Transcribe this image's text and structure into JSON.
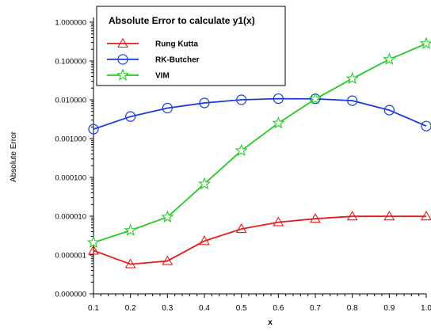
{
  "chart_data": {
    "type": "line",
    "title": "Absolute Error to calculate y1(x)",
    "xlabel": "x",
    "ylabel": "Absolute Error",
    "x": [
      0.1,
      0.2,
      0.3,
      0.4,
      0.5,
      0.6,
      0.7,
      0.8,
      0.9,
      1.0
    ],
    "x_tick_labels": [
      "0.1",
      "0.2",
      "0.3",
      "0.4",
      "0.5",
      "0.6",
      "0.7",
      "0.8",
      "0.9",
      "1.0"
    ],
    "y_tick_labels": [
      "0.000000",
      "0.000001",
      "0.000010",
      "0.000100",
      "0.001000",
      "0.010000",
      "0.100000",
      "1.000000"
    ],
    "y_scale": "log",
    "y_tick_values": [
      1e-07,
      1e-06,
      1e-05,
      0.0001,
      0.001,
      0.01,
      0.1,
      1
    ],
    "ylim": [
      1e-07,
      1
    ],
    "xlim": [
      0.1,
      1.0
    ],
    "grid": false,
    "legend_position": "top-left",
    "series": [
      {
        "name": "Rung Kutta",
        "color": "#e81c1c",
        "marker": "triangle",
        "values": [
          1.3e-06,
          5.8e-07,
          7e-07,
          2.3e-06,
          4.7e-06,
          7e-06,
          8.6e-06,
          9.9e-06,
          9.9e-06,
          9.9e-06
        ]
      },
      {
        "name": "RK-Butcher",
        "color": "#1c3cd8",
        "marker": "circle",
        "values": [
          0.00175,
          0.0037,
          0.0061,
          0.0083,
          0.01,
          0.0107,
          0.0106,
          0.0095,
          0.0054,
          0.0021
        ]
      },
      {
        "name": "VIM",
        "color": "#22cc22",
        "marker": "star",
        "values": [
          2.1e-06,
          4.3e-06,
          9.5e-06,
          6.8e-05,
          0.00049,
          0.0025,
          0.0105,
          0.035,
          0.11,
          0.28
        ]
      }
    ]
  }
}
